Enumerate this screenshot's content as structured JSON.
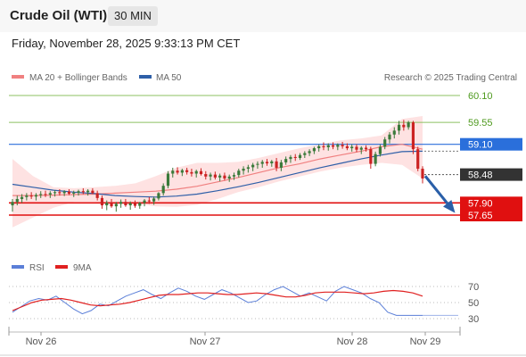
{
  "header": {
    "title": "Crude Oil (WTI)",
    "timeframe": "30 MIN"
  },
  "timestamp": "Friday, November 28, 2025 9:33:13 PM CET",
  "legend": {
    "ma20_label": "MA 20 + Bollinger Bands",
    "ma50_label": "MA 50",
    "rsi_label": "RSI",
    "rsi_ma_label": "9MA"
  },
  "copyright": "Research © 2025 Trading Central",
  "colors": {
    "bull": "#3a7a3a",
    "bear": "#cc2222",
    "ma20": "#f08080",
    "ma50": "#2e5fa8",
    "band": "#fdd8d8",
    "resistance": "#8cc060",
    "pivot": "#2a6fdb",
    "support": "#e01010",
    "current": "#333333",
    "arrow": "#2a5fa8",
    "rsi": "#5b7fd8",
    "rsi_ma": "#e02020"
  },
  "chart_data": [
    {
      "type": "candlestick",
      "title": "Crude Oil (WTI)",
      "timeframe": "30 MIN",
      "ylim": [
        57.4,
        60.3
      ],
      "x_ticks": [
        "Nov 26",
        "Nov 27",
        "Nov 28",
        "Nov 29"
      ],
      "levels": [
        {
          "label": "60.10",
          "value": 60.1,
          "kind": "resistance"
        },
        {
          "label": "59.55",
          "value": 59.55,
          "kind": "resistance"
        },
        {
          "label": "59.10",
          "value": 59.1,
          "kind": "pivot"
        },
        {
          "label": "58.48",
          "value": 58.48,
          "kind": "current"
        },
        {
          "label": "57.90",
          "value": 57.9,
          "kind": "support"
        },
        {
          "label": "57.65",
          "value": 57.65,
          "kind": "support"
        }
      ],
      "candles": [
        {
          "o": 57.85,
          "h": 57.98,
          "l": 57.72,
          "c": 57.92
        },
        {
          "o": 57.92,
          "h": 58.05,
          "l": 57.85,
          "c": 57.98
        },
        {
          "o": 57.98,
          "h": 58.08,
          "l": 57.9,
          "c": 58.02
        },
        {
          "o": 58.02,
          "h": 58.1,
          "l": 57.95,
          "c": 58.05
        },
        {
          "o": 58.05,
          "h": 58.12,
          "l": 57.98,
          "c": 58.03
        },
        {
          "o": 58.03,
          "h": 58.1,
          "l": 57.95,
          "c": 58.06
        },
        {
          "o": 58.06,
          "h": 58.14,
          "l": 58.0,
          "c": 58.08
        },
        {
          "o": 58.08,
          "h": 58.15,
          "l": 58.02,
          "c": 58.07
        },
        {
          "o": 58.07,
          "h": 58.14,
          "l": 58.0,
          "c": 58.1
        },
        {
          "o": 58.1,
          "h": 58.16,
          "l": 58.03,
          "c": 58.12
        },
        {
          "o": 58.12,
          "h": 58.18,
          "l": 58.05,
          "c": 58.1
        },
        {
          "o": 58.1,
          "h": 58.16,
          "l": 58.04,
          "c": 58.13
        },
        {
          "o": 58.13,
          "h": 58.18,
          "l": 58.06,
          "c": 58.09
        },
        {
          "o": 58.09,
          "h": 58.15,
          "l": 58.02,
          "c": 58.11
        },
        {
          "o": 58.11,
          "h": 58.17,
          "l": 58.05,
          "c": 58.14
        },
        {
          "o": 58.14,
          "h": 58.2,
          "l": 58.08,
          "c": 58.12
        },
        {
          "o": 58.12,
          "h": 58.18,
          "l": 58.05,
          "c": 58.15
        },
        {
          "o": 58.15,
          "h": 58.2,
          "l": 58.08,
          "c": 58.1
        },
        {
          "o": 58.1,
          "h": 58.15,
          "l": 57.95,
          "c": 58.0
        },
        {
          "o": 58.0,
          "h": 58.05,
          "l": 57.78,
          "c": 57.85
        },
        {
          "o": 57.85,
          "h": 57.95,
          "l": 57.75,
          "c": 57.9
        },
        {
          "o": 57.9,
          "h": 57.98,
          "l": 57.8,
          "c": 57.83
        },
        {
          "o": 57.83,
          "h": 57.92,
          "l": 57.72,
          "c": 57.88
        },
        {
          "o": 57.88,
          "h": 57.97,
          "l": 57.8,
          "c": 57.92
        },
        {
          "o": 57.92,
          "h": 57.98,
          "l": 57.82,
          "c": 57.85
        },
        {
          "o": 57.85,
          "h": 57.93,
          "l": 57.76,
          "c": 57.89
        },
        {
          "o": 57.89,
          "h": 57.95,
          "l": 57.8,
          "c": 57.84
        },
        {
          "o": 57.84,
          "h": 57.92,
          "l": 57.78,
          "c": 57.9
        },
        {
          "o": 57.9,
          "h": 57.98,
          "l": 57.83,
          "c": 57.95
        },
        {
          "o": 57.95,
          "h": 58.02,
          "l": 57.88,
          "c": 57.93
        },
        {
          "o": 57.93,
          "h": 58.03,
          "l": 57.86,
          "c": 57.99
        },
        {
          "o": 57.99,
          "h": 58.12,
          "l": 57.95,
          "c": 58.1
        },
        {
          "o": 58.1,
          "h": 58.3,
          "l": 58.05,
          "c": 58.25
        },
        {
          "o": 58.25,
          "h": 58.55,
          "l": 58.2,
          "c": 58.5
        },
        {
          "o": 58.5,
          "h": 58.62,
          "l": 58.42,
          "c": 58.56
        },
        {
          "o": 58.56,
          "h": 58.63,
          "l": 58.48,
          "c": 58.52
        },
        {
          "o": 58.52,
          "h": 58.6,
          "l": 58.45,
          "c": 58.57
        },
        {
          "o": 58.57,
          "h": 58.62,
          "l": 58.48,
          "c": 58.53
        },
        {
          "o": 58.53,
          "h": 58.6,
          "l": 58.44,
          "c": 58.5
        },
        {
          "o": 58.5,
          "h": 58.58,
          "l": 58.42,
          "c": 58.55
        },
        {
          "o": 58.55,
          "h": 58.61,
          "l": 58.46,
          "c": 58.49
        },
        {
          "o": 58.49,
          "h": 58.55,
          "l": 58.38,
          "c": 58.44
        },
        {
          "o": 58.44,
          "h": 58.52,
          "l": 58.36,
          "c": 58.48
        },
        {
          "o": 58.48,
          "h": 58.54,
          "l": 58.38,
          "c": 58.42
        },
        {
          "o": 58.42,
          "h": 58.5,
          "l": 58.34,
          "c": 58.46
        },
        {
          "o": 58.46,
          "h": 58.52,
          "l": 58.36,
          "c": 58.4
        },
        {
          "o": 58.4,
          "h": 58.48,
          "l": 58.33,
          "c": 58.44
        },
        {
          "o": 58.44,
          "h": 58.52,
          "l": 58.37,
          "c": 58.47
        },
        {
          "o": 58.47,
          "h": 58.6,
          "l": 58.42,
          "c": 58.56
        },
        {
          "o": 58.56,
          "h": 58.65,
          "l": 58.48,
          "c": 58.6
        },
        {
          "o": 58.6,
          "h": 58.68,
          "l": 58.52,
          "c": 58.63
        },
        {
          "o": 58.63,
          "h": 58.72,
          "l": 58.55,
          "c": 58.68
        },
        {
          "o": 58.68,
          "h": 58.75,
          "l": 58.6,
          "c": 58.7
        },
        {
          "o": 58.7,
          "h": 58.78,
          "l": 58.62,
          "c": 58.74
        },
        {
          "o": 58.74,
          "h": 58.8,
          "l": 58.66,
          "c": 58.71
        },
        {
          "o": 58.71,
          "h": 58.78,
          "l": 58.64,
          "c": 58.75
        },
        {
          "o": 58.75,
          "h": 58.82,
          "l": 58.55,
          "c": 58.62
        },
        {
          "o": 58.62,
          "h": 58.78,
          "l": 58.55,
          "c": 58.73
        },
        {
          "o": 58.73,
          "h": 58.85,
          "l": 58.68,
          "c": 58.8
        },
        {
          "o": 58.8,
          "h": 58.88,
          "l": 58.72,
          "c": 58.84
        },
        {
          "o": 58.84,
          "h": 58.9,
          "l": 58.76,
          "c": 58.82
        },
        {
          "o": 58.82,
          "h": 58.92,
          "l": 58.78,
          "c": 58.88
        },
        {
          "o": 58.88,
          "h": 58.96,
          "l": 58.82,
          "c": 58.92
        },
        {
          "o": 58.92,
          "h": 59.0,
          "l": 58.86,
          "c": 58.96
        },
        {
          "o": 58.96,
          "h": 59.05,
          "l": 58.9,
          "c": 59.02
        },
        {
          "o": 59.02,
          "h": 59.1,
          "l": 58.95,
          "c": 59.06
        },
        {
          "o": 59.06,
          "h": 59.14,
          "l": 58.98,
          "c": 59.04
        },
        {
          "o": 59.04,
          "h": 59.12,
          "l": 58.97,
          "c": 59.08
        },
        {
          "o": 59.08,
          "h": 59.14,
          "l": 59.0,
          "c": 59.05
        },
        {
          "o": 59.05,
          "h": 59.12,
          "l": 58.98,
          "c": 59.09
        },
        {
          "o": 59.09,
          "h": 59.15,
          "l": 59.01,
          "c": 59.06
        },
        {
          "o": 59.06,
          "h": 59.12,
          "l": 58.98,
          "c": 59.02
        },
        {
          "o": 59.02,
          "h": 59.1,
          "l": 58.95,
          "c": 59.05
        },
        {
          "o": 59.05,
          "h": 59.1,
          "l": 58.94,
          "c": 58.99
        },
        {
          "o": 58.99,
          "h": 59.06,
          "l": 58.9,
          "c": 59.03
        },
        {
          "o": 59.03,
          "h": 59.08,
          "l": 58.95,
          "c": 59.0
        },
        {
          "o": 59.0,
          "h": 59.05,
          "l": 58.6,
          "c": 58.7
        },
        {
          "o": 58.7,
          "h": 58.95,
          "l": 58.65,
          "c": 58.9
        },
        {
          "o": 58.9,
          "h": 59.1,
          "l": 58.85,
          "c": 59.05
        },
        {
          "o": 59.05,
          "h": 59.25,
          "l": 59.0,
          "c": 59.2
        },
        {
          "o": 59.2,
          "h": 59.35,
          "l": 59.12,
          "c": 59.3
        },
        {
          "o": 59.3,
          "h": 59.45,
          "l": 59.22,
          "c": 59.38
        },
        {
          "o": 59.38,
          "h": 59.58,
          "l": 59.3,
          "c": 59.5
        },
        {
          "o": 59.5,
          "h": 59.6,
          "l": 59.38,
          "c": 59.45
        },
        {
          "o": 59.45,
          "h": 59.58,
          "l": 59.4,
          "c": 59.55
        },
        {
          "o": 59.55,
          "h": 59.58,
          "l": 58.9,
          "c": 59.0
        },
        {
          "o": 59.0,
          "h": 59.05,
          "l": 58.55,
          "c": 58.6
        },
        {
          "o": 58.6,
          "h": 58.65,
          "l": 58.3,
          "c": 58.4
        }
      ],
      "ma20": [
        58.05,
        58.05,
        58.06,
        58.07,
        58.08,
        58.1,
        58.12,
        58.14,
        58.18,
        58.24,
        58.33,
        58.42,
        58.52,
        58.62,
        58.7,
        58.8,
        58.88,
        58.96,
        59.05,
        59.1,
        59.0
      ],
      "ma50": [
        58.28,
        58.22,
        58.16,
        58.12,
        58.09,
        58.05,
        58.03,
        58.02,
        58.04,
        58.08,
        58.15,
        58.23,
        58.32,
        58.42,
        58.52,
        58.62,
        58.71,
        58.8,
        58.88,
        58.95,
        58.96
      ],
      "bb_upper": [
        58.8,
        58.45,
        58.22,
        58.2,
        58.22,
        58.25,
        58.3,
        58.45,
        58.62,
        58.72,
        58.72,
        58.74,
        58.82,
        58.92,
        59.02,
        59.1,
        59.18,
        59.22,
        59.28,
        59.62,
        59.68
      ],
      "bb_lower": [
        57.4,
        57.6,
        57.8,
        57.92,
        57.92,
        57.88,
        57.88,
        57.83,
        57.82,
        57.86,
        57.98,
        58.12,
        58.22,
        58.34,
        58.44,
        58.54,
        58.62,
        58.68,
        58.72,
        58.68,
        58.4
      ]
    },
    {
      "type": "line",
      "title": "RSI",
      "ylim": [
        20,
        80
      ],
      "y_ticks": [
        70,
        50,
        30
      ],
      "series": [
        {
          "name": "RSI",
          "values": [
            38,
            45,
            52,
            55,
            53,
            58,
            50,
            42,
            36,
            40,
            48,
            46,
            52,
            58,
            62,
            66,
            60,
            55,
            62,
            68,
            64,
            58,
            54,
            60,
            66,
            62,
            56,
            50,
            52,
            60,
            66,
            70,
            64,
            58,
            62,
            57,
            52,
            64,
            70,
            66,
            62,
            55,
            50,
            38,
            34,
            34,
            34,
            34
          ]
        },
        {
          "name": "9MA",
          "values": [
            40,
            45,
            50,
            53,
            54,
            55,
            53,
            50,
            47,
            46,
            47,
            48,
            50,
            53,
            56,
            59,
            60,
            60,
            61,
            62,
            62,
            61,
            60,
            60,
            61,
            62,
            61,
            59,
            57,
            57,
            59,
            62,
            63,
            63,
            63,
            62,
            61,
            62,
            64,
            65,
            64,
            62,
            58
          ]
        }
      ]
    }
  ]
}
